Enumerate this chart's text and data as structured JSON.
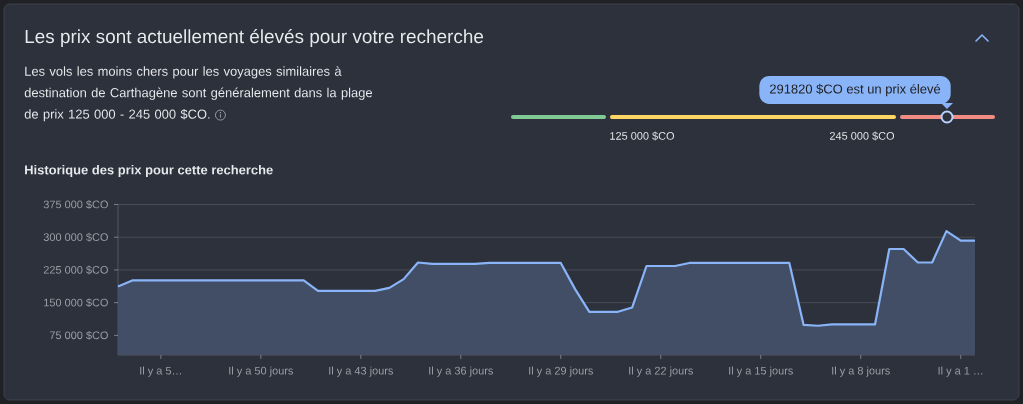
{
  "chart_data": [
    {
      "type": "other",
      "title": "Les prix sont actuellement élevés pour votre recherche",
      "subtitle": "Les vols les moins chers pour les voyages similaires à destination de Carthagène sont généralement dans la plage de prix 125 000 - 245 000 $CO.",
      "annotations": [
        "125 000 $CO",
        "245 000 $CO",
        "291820 $CO est un prix élevé"
      ],
      "colors": [
        "#81c995",
        "#fdd663",
        "#f28b82"
      ]
    },
    {
      "type": "area",
      "title": "Historique des prix pour cette recherche",
      "color": "#8ab4f8",
      "categories": [
        null,
        null,
        null,
        "Il y a 5…",
        null,
        null,
        null,
        null,
        null,
        null,
        "Il y a 50 jours",
        null,
        null,
        null,
        null,
        null,
        null,
        "Il y a 43 jours",
        null,
        null,
        null,
        null,
        null,
        null,
        "Il y a 36 jours",
        null,
        null,
        null,
        null,
        null,
        null,
        "Il y a 29 jours",
        null,
        null,
        null,
        null,
        null,
        null,
        "Il y a 22 jours",
        null,
        null,
        null,
        null,
        null,
        null,
        "Il y a 15 jours",
        null,
        null,
        null,
        null,
        null,
        null,
        "Il y a 8 jours",
        null,
        null,
        null,
        null,
        null,
        null,
        "Il y a 1 …",
        null
      ],
      "values": [
        187000,
        201000,
        201000,
        201000,
        201000,
        201000,
        201000,
        201000,
        201000,
        201000,
        201000,
        201000,
        201000,
        201000,
        177000,
        177000,
        177000,
        177000,
        177000,
        184000,
        204000,
        242000,
        239000,
        239000,
        239000,
        239000,
        241000,
        241000,
        241000,
        241000,
        241000,
        241000,
        181000,
        129000,
        129000,
        129000,
        139000,
        234000,
        234000,
        234000,
        241000,
        241000,
        241000,
        241000,
        241000,
        241000,
        241000,
        241000,
        99000,
        97000,
        100000,
        100000,
        100000,
        100000,
        273000,
        273000,
        242000,
        242000,
        314000,
        292000,
        292000
      ],
      "ylim": [
        30000,
        375000
      ],
      "yticks": [
        {
          "value": 75000,
          "label": "75 000 $CO"
        },
        {
          "value": 150000,
          "label": "150 000 $CO"
        },
        {
          "value": 225000,
          "label": "225 000 $CO"
        },
        {
          "value": 300000,
          "label": "300 000 $CO"
        },
        {
          "value": 375000,
          "label": "375 000 $CO"
        }
      ],
      "grid": "y"
    }
  ]
}
